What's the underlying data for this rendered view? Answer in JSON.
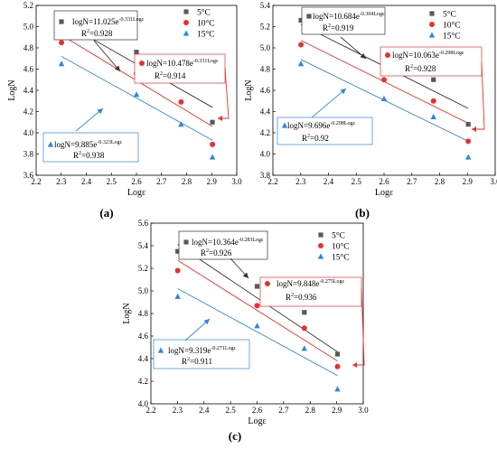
{
  "chart_data": [
    {
      "type": "scatter",
      "panel_label": "(a)",
      "xlabel": "Logε",
      "ylabel": "LogN",
      "xlim": [
        2.2,
        3.0
      ],
      "ylim": [
        3.6,
        5.2
      ],
      "xticks": [
        "2.2",
        "2.3",
        "2.4",
        "2.5",
        "2.6",
        "2.7",
        "2.8",
        "2.9",
        "3.0"
      ],
      "yticks": [
        "3.6",
        "3.8",
        "4.0",
        "4.2",
        "4.4",
        "4.6",
        "4.8",
        "5.0",
        "5.2"
      ],
      "legend_position": "top-right",
      "series": [
        {
          "name": "5°C",
          "color": "#595959",
          "marker": "square",
          "x": [
            2.301,
            2.6,
            2.778,
            2.903
          ],
          "y": [
            5.11,
            4.76,
            4.51,
            4.1
          ],
          "fit": {
            "x": [
              2.301,
              2.903
            ],
            "y": [
              5.05,
              4.24
            ]
          },
          "equation_main": "logN=11.025e",
          "equation_exp": "-0.331Logε",
          "r2_main": "R",
          "r2_sup": "2",
          "r2_val": "=0.928",
          "line_color": "#333333"
        },
        {
          "name": "10°C",
          "color": "#e8312f",
          "marker": "circle",
          "x": [
            2.301,
            2.6,
            2.778,
            2.903
          ],
          "y": [
            4.85,
            4.56,
            4.29,
            3.89
          ],
          "fit": {
            "x": [
              2.301,
              2.903
            ],
            "y": [
              4.92,
              4.06
            ]
          },
          "equation_main": "logN=10.478e",
          "equation_exp": "-0.331Logε",
          "r2_main": "R",
          "r2_sup": "2",
          "r2_val": "=0.914",
          "line_color": "#e8312f"
        },
        {
          "name": "15°C",
          "color": "#2e86de",
          "marker": "triangle",
          "x": [
            2.301,
            2.6,
            2.778,
            2.903
          ],
          "y": [
            4.65,
            4.36,
            4.08,
            3.77
          ],
          "fit": {
            "x": [
              2.301,
              2.903
            ],
            "y": [
              4.72,
              3.93
            ]
          },
          "equation_main": "logN=9.885e",
          "equation_exp": "-0.323Logε",
          "r2_main": "R",
          "r2_sup": "2",
          "r2_val": "=0.938",
          "line_color": "#2e86de"
        }
      ]
    },
    {
      "type": "scatter",
      "panel_label": "(b)",
      "xlabel": "Logε",
      "ylabel": "LogN",
      "xlim": [
        2.2,
        3.0
      ],
      "ylim": [
        3.8,
        5.4
      ],
      "xticks": [
        "2.2",
        "2.3",
        "2.4",
        "2.5",
        "2.6",
        "2.7",
        "2.8",
        "2.9",
        "3.0"
      ],
      "yticks": [
        "3.8",
        "4.0",
        "4.2",
        "4.4",
        "4.6",
        "4.8",
        "5.0",
        "5.2",
        "5.4"
      ],
      "legend_position": "top-right",
      "series": [
        {
          "name": "5°C",
          "color": "#595959",
          "marker": "square",
          "x": [
            2.301,
            2.6,
            2.778,
            2.903
          ],
          "y": [
            5.26,
            4.92,
            4.7,
            4.28
          ],
          "fit": {
            "x": [
              2.301,
              2.903
            ],
            "y": [
              5.22,
              4.43
            ]
          },
          "equation_main": "logN=10.684e",
          "equation_exp": "-0.304Logε",
          "r2_main": "R",
          "r2_sup": "2",
          "r2_val": "=0.919",
          "line_color": "#333333"
        },
        {
          "name": "10°C",
          "color": "#e8312f",
          "marker": "circle",
          "x": [
            2.301,
            2.6,
            2.778,
            2.903
          ],
          "y": [
            5.03,
            4.7,
            4.5,
            4.12
          ],
          "fit": {
            "x": [
              2.301,
              2.903
            ],
            "y": [
              5.07,
              4.29
            ]
          },
          "equation_main": "logN=10.063e",
          "equation_exp": "-0.298Logε",
          "r2_main": "R",
          "r2_sup": "2",
          "r2_val": "=0.928",
          "line_color": "#e8312f"
        },
        {
          "name": "15°C",
          "color": "#2e86de",
          "marker": "triangle",
          "x": [
            2.301,
            2.6,
            2.778,
            2.903
          ],
          "y": [
            4.85,
            4.52,
            4.35,
            3.97
          ],
          "fit": {
            "x": [
              2.301,
              2.903
            ],
            "y": [
              4.89,
              4.12
            ]
          },
          "equation_main": "logN=9.696e",
          "equation_exp": "-0.298Logε",
          "r2_main": "R",
          "r2_sup": "2",
          "r2_val": "=0.92",
          "line_color": "#2e86de"
        }
      ]
    },
    {
      "type": "scatter",
      "panel_label": "(c)",
      "xlabel": "Logε",
      "ylabel": "LogN",
      "xlim": [
        2.2,
        3.0
      ],
      "ylim": [
        4.0,
        5.6
      ],
      "xticks": [
        "2.2",
        "2.3",
        "2.4",
        "2.5",
        "2.6",
        "2.7",
        "2.8",
        "2.9",
        "3.0"
      ],
      "yticks": [
        "4.0",
        "4.2",
        "4.4",
        "4.6",
        "4.8",
        "5.0",
        "5.2",
        "5.4",
        "5.6"
      ],
      "legend_position": "top-right",
      "series": [
        {
          "name": "5°C",
          "color": "#595959",
          "marker": "square",
          "x": [
            2.301,
            2.6,
            2.778,
            2.903
          ],
          "y": [
            5.35,
            5.04,
            4.81,
            4.44
          ],
          "fit": {
            "x": [
              2.301,
              2.903
            ],
            "y": [
              5.41,
              4.46
            ]
          },
          "equation_main": "logN=10.364e",
          "equation_exp": "-0.283Logε",
          "r2_main": "R",
          "r2_sup": "2",
          "r2_val": "=0.926",
          "line_color": "#333333"
        },
        {
          "name": "10°C",
          "color": "#e8312f",
          "marker": "circle",
          "x": [
            2.301,
            2.6,
            2.778,
            2.903
          ],
          "y": [
            5.18,
            4.87,
            4.67,
            4.33
          ],
          "fit": {
            "x": [
              2.301,
              2.903
            ],
            "y": [
              5.27,
              4.38
            ]
          },
          "equation_main": "logN=9.848e",
          "equation_exp": "-0.275Logε",
          "r2_main": "R",
          "r2_sup": "2",
          "r2_val": "=0.936",
          "line_color": "#e8312f"
        },
        {
          "name": "15°C",
          "color": "#2e86de",
          "marker": "triangle",
          "x": [
            2.301,
            2.6,
            2.778,
            2.903
          ],
          "y": [
            4.95,
            4.69,
            4.49,
            4.13
          ],
          "fit": {
            "x": [
              2.301,
              2.903
            ],
            "y": [
              5.02,
              4.25
            ]
          },
          "equation_main": "logN=9.319e",
          "equation_exp": "-0.271Logε",
          "r2_main": "R",
          "r2_sup": "2",
          "r2_val": "=0.911",
          "line_color": "#2e86de"
        }
      ]
    }
  ]
}
